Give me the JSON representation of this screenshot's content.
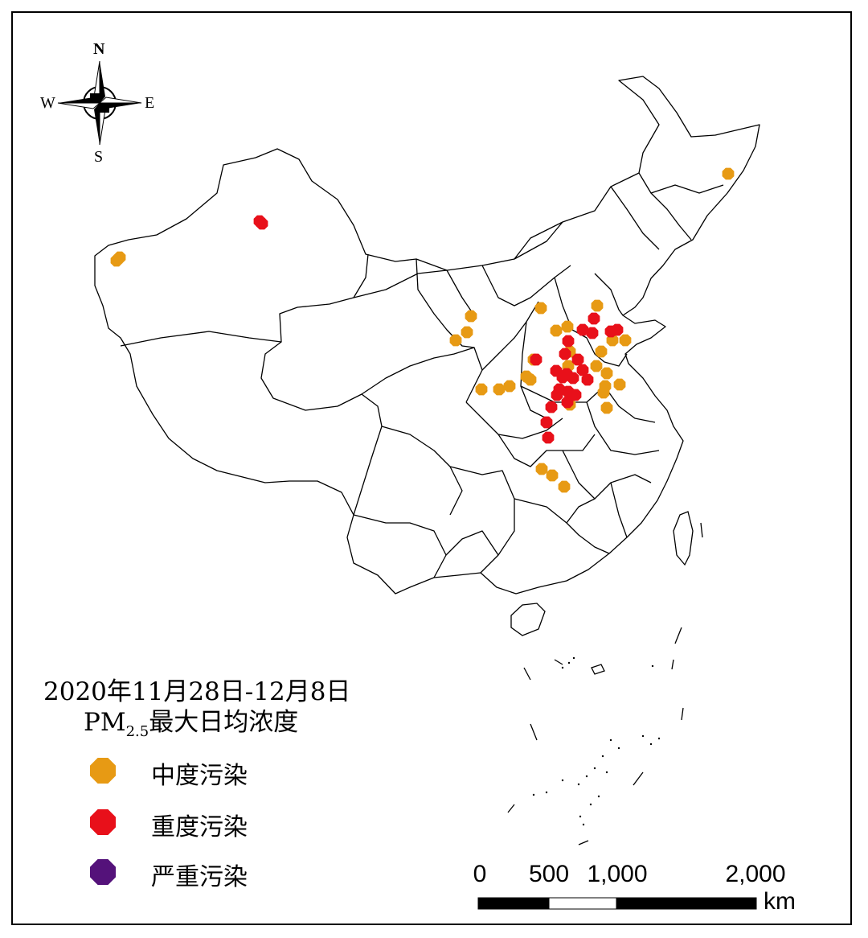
{
  "legend": {
    "title_line1": "2020年11月28日-12月8日",
    "title_line2_prefix": "PM",
    "title_line2_sub": "2.5",
    "title_line2_rest": "最大日均浓度",
    "items": [
      {
        "label": "中度污染",
        "color": "#E79A14"
      },
      {
        "label": "重度污染",
        "color": "#E8101A"
      },
      {
        "label": "严重污染",
        "color": "#54127A"
      }
    ]
  },
  "compass": {
    "n": "N",
    "s": "S",
    "e": "E",
    "w": "W"
  },
  "scale_bar": {
    "ticks": [
      "0",
      "500",
      "1,000",
      "2,000"
    ],
    "unit": "km"
  },
  "colors": {
    "moderate": "#E79A14",
    "heavy": "#E8101A",
    "severe": "#54127A"
  },
  "stations": {
    "moderate": [
      [
        906,
        216
      ],
      [
        149,
        320
      ],
      [
        145,
        324
      ],
      [
        743,
        380
      ],
      [
        673,
        383
      ],
      [
        586,
        393
      ],
      [
        581,
        413
      ],
      [
        567,
        423
      ],
      [
        692,
        411
      ],
      [
        706,
        406
      ],
      [
        762,
        423
      ],
      [
        778,
        423
      ],
      [
        664,
        447
      ],
      [
        709,
        437
      ],
      [
        707,
        455
      ],
      [
        742,
        455
      ],
      [
        748,
        437
      ],
      [
        755,
        464
      ],
      [
        655,
        468
      ],
      [
        660,
        472
      ],
      [
        753,
        480
      ],
      [
        771,
        478
      ],
      [
        599,
        484
      ],
      [
        621,
        484
      ],
      [
        634,
        480
      ],
      [
        751,
        488
      ],
      [
        755,
        507
      ],
      [
        709,
        503
      ],
      [
        674,
        583
      ],
      [
        687,
        591
      ],
      [
        702,
        605
      ]
    ],
    "heavy": [
      [
        323,
        275
      ],
      [
        326,
        278
      ],
      [
        739,
        396
      ],
      [
        725,
        410
      ],
      [
        737,
        414
      ],
      [
        760,
        412
      ],
      [
        768,
        410
      ],
      [
        707,
        424
      ],
      [
        703,
        440
      ],
      [
        719,
        447
      ],
      [
        667,
        447
      ],
      [
        725,
        460
      ],
      [
        692,
        461
      ],
      [
        700,
        469
      ],
      [
        713,
        470
      ],
      [
        731,
        472
      ],
      [
        705,
        465
      ],
      [
        696,
        484
      ],
      [
        707,
        487
      ],
      [
        716,
        491
      ],
      [
        693,
        491
      ],
      [
        706,
        500
      ],
      [
        686,
        506
      ],
      [
        680,
        525
      ],
      [
        682,
        544
      ]
    ]
  }
}
